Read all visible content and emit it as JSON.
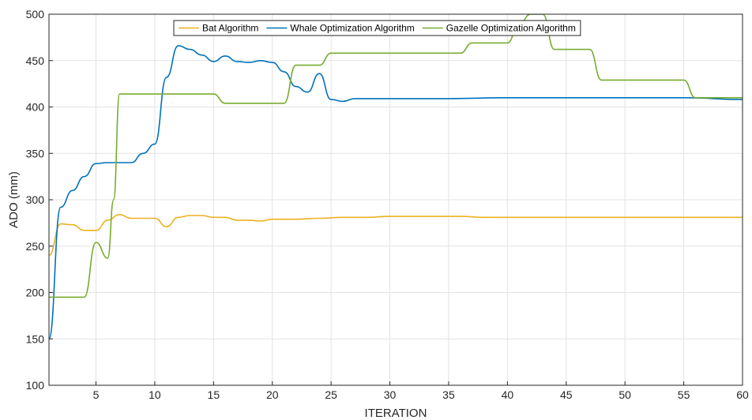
{
  "chart_data": {
    "type": "line",
    "xlabel": "ITERATION",
    "ylabel": "ADO (mm)",
    "xlim": [
      1,
      60
    ],
    "ylim": [
      100,
      500
    ],
    "xticks": [
      5,
      10,
      15,
      20,
      25,
      30,
      35,
      40,
      45,
      50,
      55,
      60
    ],
    "yticks": [
      100,
      150,
      200,
      250,
      300,
      350,
      400,
      450,
      500
    ],
    "grid": true,
    "legend_position": "top-center",
    "series": [
      {
        "name": "Bat Algorithm",
        "color": "#EDB120",
        "x": [
          1,
          2,
          3,
          4,
          5,
          6,
          7,
          8,
          9,
          10,
          11,
          12,
          13,
          14,
          15,
          16,
          17,
          18,
          19,
          20,
          22,
          24,
          26,
          28,
          30,
          32,
          34,
          36,
          38,
          40,
          45,
          50,
          55,
          60
        ],
        "values": [
          240,
          274,
          273,
          267,
          267,
          278,
          284,
          280,
          280,
          280,
          271,
          281,
          283,
          283,
          281,
          281,
          278,
          278,
          277,
          279,
          279,
          280,
          281,
          281,
          282,
          282,
          282,
          282,
          281,
          281,
          281,
          281,
          281,
          281
        ]
      },
      {
        "name": "Whale Optimization Algorithm",
        "color": "#0072BD",
        "x": [
          1,
          2,
          3,
          4,
          5,
          6,
          7,
          8,
          9,
          10,
          11,
          12,
          13,
          14,
          15,
          16,
          17,
          18,
          19,
          20,
          21,
          22,
          23,
          24,
          25,
          26,
          27,
          28,
          30,
          35,
          40,
          45,
          50,
          55,
          60
        ],
        "values": [
          150,
          292,
          310,
          325,
          339,
          340,
          340,
          340,
          350,
          360,
          432,
          466,
          462,
          456,
          449,
          455,
          449,
          448,
          450,
          448,
          438,
          422,
          416,
          436,
          408,
          406,
          409,
          409,
          409,
          409,
          410,
          410,
          410,
          410,
          408
        ]
      },
      {
        "name": "Gazelle Optimization Algorithm",
        "color": "#77AC30",
        "x": [
          1,
          2,
          3,
          4,
          5,
          6,
          6.5,
          7,
          8,
          9,
          10,
          11,
          12,
          13,
          14,
          15,
          16,
          17,
          18,
          19,
          20,
          21,
          22,
          23,
          24,
          25,
          26,
          27,
          30,
          35,
          36,
          37,
          38,
          39,
          40,
          41,
          42,
          43,
          44,
          45,
          46,
          47,
          48,
          50,
          55,
          56,
          57,
          58,
          59,
          60
        ],
        "values": [
          195,
          195,
          195,
          195,
          254,
          237,
          300,
          414,
          414,
          414,
          414,
          414,
          414,
          414,
          414,
          414,
          404,
          404,
          404,
          404,
          404,
          404,
          445,
          445,
          445,
          458,
          458,
          458,
          458,
          458,
          458,
          469,
          469,
          469,
          469,
          490,
          500,
          500,
          462,
          462,
          462,
          462,
          429,
          429,
          429,
          410,
          410,
          410,
          410,
          410
        ]
      }
    ]
  }
}
